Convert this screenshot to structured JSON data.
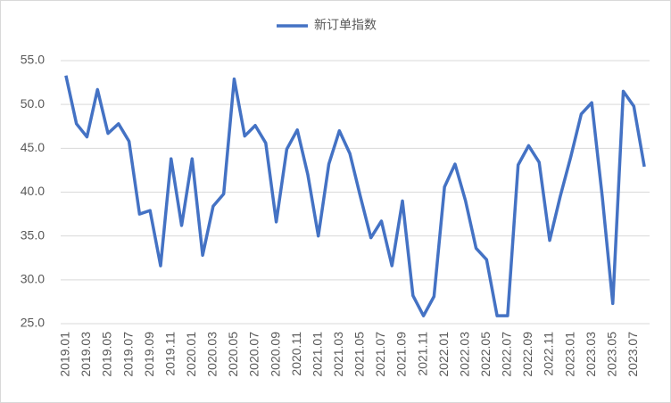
{
  "chart_data": {
    "type": "line",
    "categories": [
      "2019.01",
      null,
      "2019.03",
      null,
      "2019.05",
      null,
      "2019.07",
      null,
      "2019.09",
      null,
      "2019.11",
      null,
      "2020.01",
      null,
      "2020.03",
      null,
      "2020.05",
      null,
      "2020.07",
      null,
      "2020.09",
      null,
      "2020.11",
      null,
      "2021.01",
      null,
      "2021.03",
      null,
      "2021.05",
      null,
      "2021.07",
      null,
      "2021.09",
      null,
      "2021.11",
      null,
      "2022.01",
      null,
      "2022.03",
      null,
      "2022.05",
      null,
      "2022.07",
      null,
      "2022.09",
      null,
      "2022.11",
      null,
      "2023.01",
      null,
      "2023.03",
      null,
      "2023.05",
      null,
      "2023.07",
      null
    ],
    "series": [
      {
        "name": "新订单指数",
        "color": "#4472c4",
        "values": [
          53.3,
          47.8,
          46.3,
          51.7,
          46.7,
          47.8,
          45.8,
          37.5,
          37.9,
          31.6,
          43.8,
          36.2,
          43.8,
          32.8,
          38.4,
          39.8,
          52.9,
          46.4,
          47.6,
          45.6,
          36.6,
          44.9,
          47.1,
          42.0,
          35.0,
          43.2,
          47.0,
          44.4,
          39.5,
          34.8,
          36.7,
          31.6,
          39.0,
          28.2,
          25.9,
          28.1,
          40.6,
          43.2,
          39.0,
          33.6,
          32.3,
          25.9,
          25.9,
          43.1,
          45.3,
          43.4,
          34.5,
          39.5,
          44.0,
          48.9,
          50.2,
          39.5,
          27.3,
          51.5,
          49.8,
          42.9
        ]
      }
    ],
    "ylim": [
      25,
      55
    ],
    "yticks": [
      {
        "value": 25,
        "label": "25.0"
      },
      {
        "value": 30,
        "label": "30.0"
      },
      {
        "value": 35,
        "label": "35.0"
      },
      {
        "value": 40,
        "label": "40.0"
      },
      {
        "value": 45,
        "label": "45.0"
      },
      {
        "value": 50,
        "label": "50.0"
      },
      {
        "value": 55,
        "label": "55.0"
      }
    ],
    "grid": true,
    "legend": "top"
  }
}
